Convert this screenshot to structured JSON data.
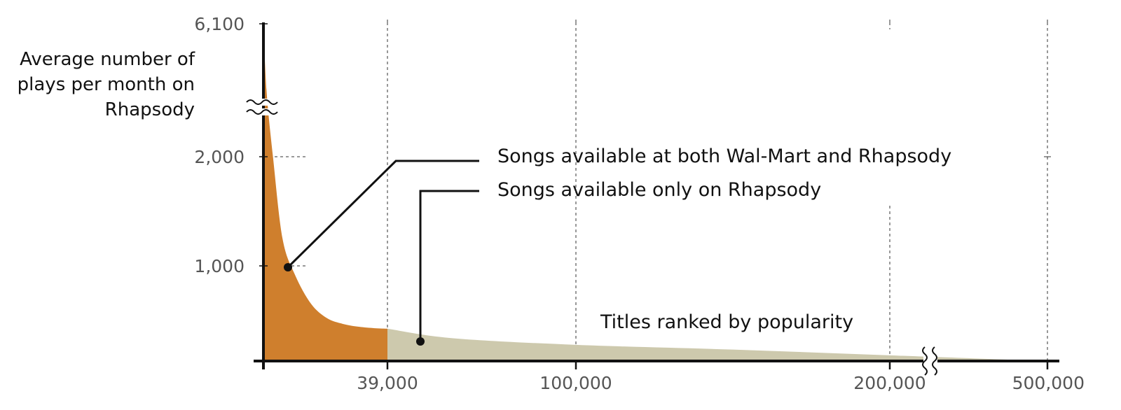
{
  "chart_data": {
    "type": "area",
    "ylabel_lines": [
      "Average number of",
      "plays per month on",
      "Rhapsody"
    ],
    "xlabel": "Titles ranked by popularity",
    "y_ticks": [
      "6,100",
      "2,000",
      "1,000"
    ],
    "x_ticks": [
      "39,000",
      "100,000",
      "200,000",
      "500,000"
    ],
    "x_tick_values": [
      39000,
      100000,
      200000,
      500000
    ],
    "y_tick_values": [
      6100,
      2000,
      1000
    ],
    "axis_breaks": {
      "y": "between 2,000 and 6,100",
      "x": "between 200,000 and 500,000"
    },
    "series": [
      {
        "name": "Songs available at both Wal-Mart and Rhapsody",
        "color": "#cf7f2d",
        "x": [
          1,
          1000,
          3000,
          6000,
          10000,
          15000,
          20000,
          25000,
          30000,
          35000,
          39000
        ],
        "y": [
          6100,
          4000,
          2000,
          1250,
          900,
          600,
          450,
          390,
          360,
          345,
          340
        ]
      },
      {
        "name": "Songs available only on Rhapsody",
        "color": "#cdc9ad",
        "x": [
          39000,
          60000,
          100000,
          150000,
          200000,
          500000
        ],
        "y": [
          340,
          240,
          170,
          120,
          60,
          0
        ]
      }
    ],
    "grid": "vertical dashed lines at x ticks"
  }
}
